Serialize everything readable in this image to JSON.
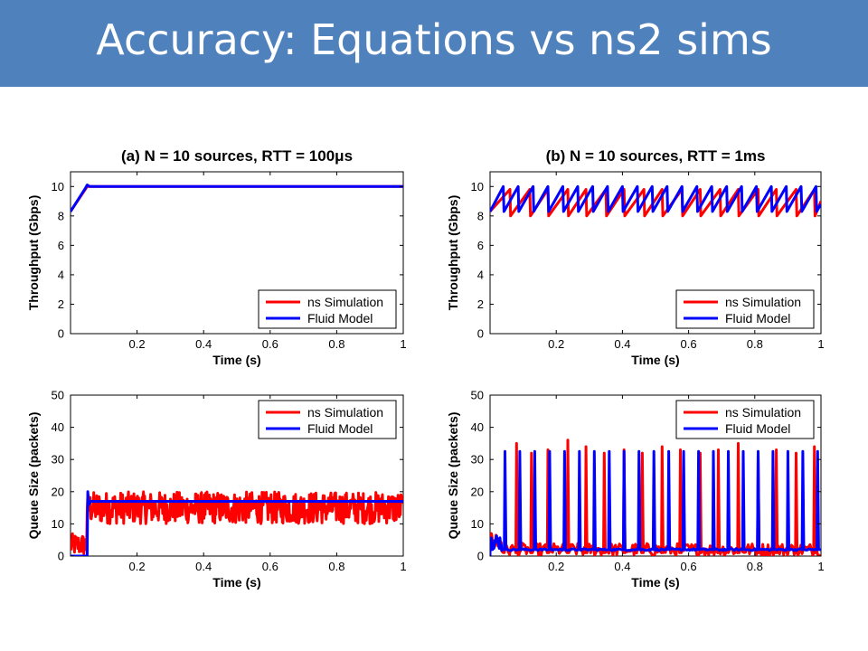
{
  "slide": {
    "title": "Accuracy: Equations vs ns2 sims"
  },
  "colors": {
    "banner": "#4f81bd",
    "ns_simulation": "#ff0000",
    "fluid_model": "#0000ff"
  },
  "chart_data": [
    {
      "id": "a-throughput",
      "type": "line",
      "title": "(a) N = 10 sources, RTT = 100μs",
      "xlabel": "Time (s)",
      "ylabel": "Throughput (Gbps)",
      "xlim": [
        0,
        1
      ],
      "ylim": [
        0,
        11
      ],
      "xticks": [
        0.2,
        0.4,
        0.6,
        0.8,
        1
      ],
      "xtick_labels": [
        "0.2",
        "0.4",
        "0.6",
        "0.8",
        "1"
      ],
      "yticks": [
        0,
        2,
        4,
        6,
        8,
        10
      ],
      "ytick_labels": [
        "0",
        "2",
        "4",
        "6",
        "8",
        "10"
      ],
      "legend": {
        "position": "bottom-right",
        "entries": [
          "ns Simulation",
          "Fluid Model"
        ]
      },
      "series": [
        {
          "name": "ns Simulation",
          "color": "#ff0000",
          "x": [
            0,
            0.05,
            0.06,
            1
          ],
          "y": [
            8.3,
            10,
            10,
            10
          ]
        },
        {
          "name": "Fluid Model",
          "color": "#0000ff",
          "x": [
            0,
            0.045,
            0.05,
            0.058,
            1
          ],
          "y": [
            8.3,
            9.9,
            10.1,
            10,
            10
          ]
        }
      ]
    },
    {
      "id": "b-throughput",
      "type": "line",
      "title": "(b) N = 10 sources, RTT = 1ms",
      "xlabel": "Time (s)",
      "ylabel": "Throughput (Gbps)",
      "xlim": [
        0,
        1
      ],
      "ylim": [
        0,
        11
      ],
      "xticks": [
        0.2,
        0.4,
        0.6,
        0.8,
        1
      ],
      "xtick_labels": [
        "0.2",
        "0.4",
        "0.6",
        "0.8",
        "1"
      ],
      "yticks": [
        0,
        2,
        4,
        6,
        8,
        10
      ],
      "ytick_labels": [
        "0",
        "2",
        "4",
        "6",
        "8",
        "10"
      ],
      "legend": {
        "position": "bottom-right",
        "entries": [
          "ns Simulation",
          "Fluid Model"
        ]
      },
      "series": [
        {
          "name": "ns Simulation",
          "color": "#ff0000",
          "x": [
            0,
            0.06,
            0.062,
            0.12,
            0.122,
            0.175,
            0.177,
            0.235,
            0.237,
            0.29,
            0.292,
            0.35,
            0.352,
            0.405,
            0.407,
            0.465,
            0.467,
            0.52,
            0.522,
            0.58,
            0.582,
            0.635,
            0.637,
            0.695,
            0.697,
            0.75,
            0.752,
            0.81,
            0.812,
            0.865,
            0.867,
            0.925,
            0.927,
            0.98,
            0.982,
            1
          ],
          "y": [
            8.3,
            9.8,
            8.0,
            9.8,
            8.0,
            9.8,
            8.0,
            9.8,
            8.0,
            9.8,
            8.0,
            9.8,
            8.0,
            9.8,
            8.0,
            9.8,
            8.0,
            9.8,
            8.0,
            9.8,
            8.0,
            9.8,
            8.0,
            9.8,
            8.0,
            9.8,
            8.0,
            9.8,
            8.0,
            9.8,
            8.0,
            9.8,
            8.0,
            9.8,
            8.0,
            9.0
          ]
        },
        {
          "name": "Fluid Model",
          "color": "#0000ff",
          "x": [
            0,
            0.04,
            0.042,
            0.085,
            0.087,
            0.13,
            0.132,
            0.175,
            0.177,
            0.22,
            0.222,
            0.265,
            0.267,
            0.31,
            0.312,
            0.355,
            0.357,
            0.4,
            0.402,
            0.445,
            0.447,
            0.49,
            0.492,
            0.535,
            0.537,
            0.58,
            0.582,
            0.625,
            0.627,
            0.67,
            0.672,
            0.715,
            0.717,
            0.76,
            0.762,
            0.805,
            0.807,
            0.85,
            0.852,
            0.895,
            0.897,
            0.94,
            0.942,
            0.985,
            0.987,
            1
          ],
          "y": [
            8.3,
            10.0,
            8.3,
            10.0,
            8.3,
            10.0,
            8.3,
            10.0,
            8.3,
            10.0,
            8.3,
            10.0,
            8.3,
            10.0,
            8.3,
            10.0,
            8.3,
            10.0,
            8.3,
            10.0,
            8.3,
            10.0,
            8.3,
            10.0,
            8.3,
            10.0,
            8.3,
            10.0,
            8.3,
            10.0,
            8.3,
            10.0,
            8.3,
            10.0,
            8.3,
            10.0,
            8.3,
            10.0,
            8.3,
            10.0,
            8.3,
            10.0,
            8.3,
            10.0,
            8.3,
            8.8
          ]
        }
      ]
    },
    {
      "id": "a-queue",
      "type": "line",
      "xlabel": "Time (s)",
      "ylabel": "Queue Size (packets)",
      "xlim": [
        0,
        1
      ],
      "ylim": [
        0,
        50
      ],
      "xticks": [
        0.2,
        0.4,
        0.6,
        0.8,
        1
      ],
      "xtick_labels": [
        "0.2",
        "0.4",
        "0.6",
        "0.8",
        "1"
      ],
      "yticks": [
        0,
        10,
        20,
        30,
        40,
        50
      ],
      "ytick_labels": [
        "0",
        "10",
        "20",
        "30",
        "40",
        "50"
      ],
      "legend": {
        "position": "top-right",
        "entries": [
          "ns Simulation",
          "Fluid Model"
        ]
      },
      "series": [
        {
          "name": "ns Simulation",
          "color": "#ff0000",
          "noise": {
            "before": [
              0,
              0.05,
              0,
              7
            ],
            "after": [
              0.05,
              1,
              10,
              20
            ]
          }
        },
        {
          "name": "Fluid Model",
          "color": "#0000ff",
          "x": [
            0,
            0.05,
            0.052,
            0.055,
            0.06,
            1
          ],
          "y": [
            0,
            0,
            20,
            16,
            17,
            17
          ]
        }
      ]
    },
    {
      "id": "b-queue",
      "type": "line",
      "xlabel": "Time (s)",
      "ylabel": "Queue Size (packets)",
      "xlim": [
        0,
        1
      ],
      "ylim": [
        0,
        50
      ],
      "xticks": [
        0.2,
        0.4,
        0.6,
        0.8,
        1
      ],
      "xtick_labels": [
        "0.2",
        "0.4",
        "0.6",
        "0.8",
        "1"
      ],
      "yticks": [
        0,
        10,
        20,
        30,
        40,
        50
      ],
      "ytick_labels": [
        "0",
        "10",
        "20",
        "30",
        "40",
        "50"
      ],
      "legend": {
        "position": "top-right",
        "entries": [
          "ns Simulation",
          "Fluid Model"
        ]
      },
      "series": [
        {
          "name": "ns Simulation",
          "color": "#ff0000",
          "spikes": [
            0.08,
            0.125,
            0.175,
            0.235,
            0.29,
            0.345,
            0.405,
            0.46,
            0.52,
            0.575,
            0.635,
            0.69,
            0.75,
            0.81,
            0.865,
            0.925,
            0.98
          ],
          "peaks": [
            35,
            32,
            33,
            36,
            34,
            32,
            33,
            32,
            34,
            33,
            32,
            33,
            35,
            32,
            33,
            32,
            34
          ],
          "floor": [
            0,
            4
          ]
        },
        {
          "name": "Fluid Model",
          "color": "#0000ff",
          "spikes": [
            0.045,
            0.09,
            0.135,
            0.18,
            0.225,
            0.27,
            0.315,
            0.36,
            0.405,
            0.45,
            0.495,
            0.54,
            0.585,
            0.63,
            0.675,
            0.72,
            0.765,
            0.81,
            0.855,
            0.9,
            0.945,
            0.99
          ],
          "peak": 32.5,
          "floor": 2
        }
      ]
    }
  ]
}
